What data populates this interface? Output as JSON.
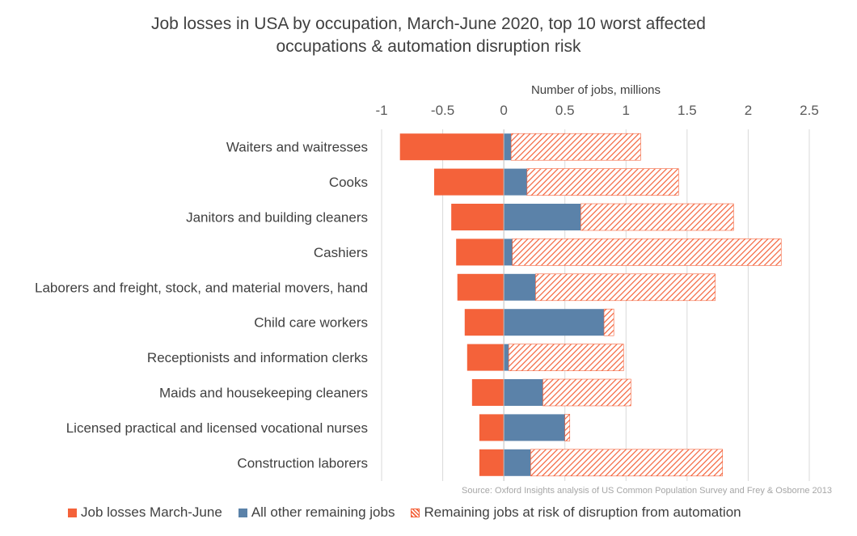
{
  "chart_data": {
    "type": "bar",
    "orientation": "horizontal",
    "stacked": true,
    "title_lines": [
      "Job losses in USA by occupation, March-June 2020, top 10 worst affected",
      "occupations & automation disruption risk"
    ],
    "xlabel": "Number of jobs, millions",
    "ylabel": "",
    "xlim": [
      -1,
      2.5
    ],
    "x_ticks": [
      -1,
      -0.5,
      0,
      0.5,
      1,
      1.5,
      2,
      2.5
    ],
    "x_tick_labels": [
      "-1",
      "-0.5",
      "0",
      "0.5",
      "1",
      "1.5",
      "2",
      "2.5"
    ],
    "grid": "vertical",
    "categories": [
      "Waiters and waitresses",
      "Cooks",
      "Janitors and building cleaners",
      "Cashiers",
      "Laborers and freight, stock, and material movers, hand",
      "Child care workers",
      "Receptionists and information clerks",
      "Maids and housekeeping cleaners",
      "Licensed practical and licensed vocational nurses",
      "Construction laborers"
    ],
    "series": [
      {
        "name": "Job losses March-June",
        "color": "#F4623A",
        "pattern": "solid",
        "values": [
          -0.85,
          -0.57,
          -0.43,
          -0.39,
          -0.38,
          -0.32,
          -0.3,
          -0.26,
          -0.2,
          -0.2
        ]
      },
      {
        "name": "All other remaining jobs",
        "color": "#5B82A9",
        "pattern": "solid",
        "values": [
          0.06,
          0.19,
          0.63,
          0.07,
          0.26,
          0.82,
          0.04,
          0.32,
          0.5,
          0.22
        ]
      },
      {
        "name": "Remaining jobs at risk of disruption from automation",
        "color": "#F4623A",
        "pattern": "diagonal-hatch",
        "values": [
          1.06,
          1.24,
          1.25,
          2.2,
          1.47,
          0.08,
          0.94,
          0.72,
          0.04,
          1.57
        ]
      }
    ],
    "legend_position": "bottom-left",
    "source": "Source: Oxford Insights analysis of US Common Population Survey and Frey & Osborne 2013"
  }
}
